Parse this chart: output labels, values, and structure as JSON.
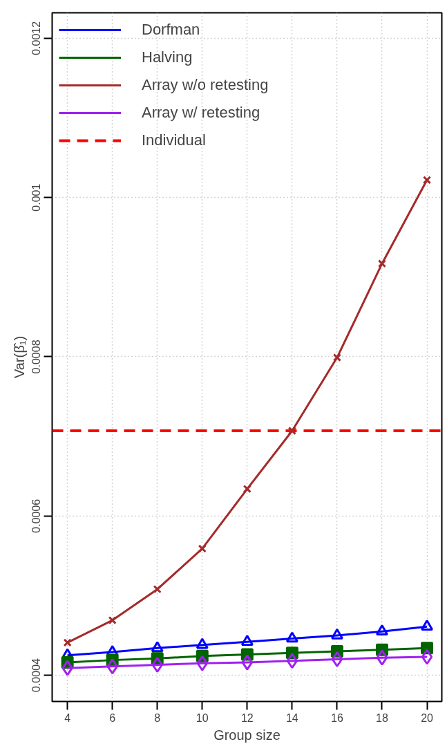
{
  "chart_data": {
    "type": "line",
    "xlabel": "Group size",
    "ylabel": "Var(β̂₁)",
    "x": [
      4,
      6,
      8,
      10,
      12,
      14,
      16,
      18,
      20
    ],
    "series": [
      {
        "name": "Dorfman",
        "color": "#0000ff",
        "marker": "triangle",
        "values": [
          0.000425,
          0.000429,
          0.000434,
          0.000438,
          0.000442,
          0.000446,
          0.00045,
          0.000455,
          0.000461
        ]
      },
      {
        "name": "Halving",
        "color": "#006400",
        "marker": "square",
        "values": [
          0.000416,
          0.000419,
          0.000421,
          0.000424,
          0.000426,
          0.000428,
          0.00043,
          0.000432,
          0.000434
        ]
      },
      {
        "name": "Array w/o retesting",
        "color": "#a52a2a",
        "marker": "cross",
        "values": [
          0.000441,
          0.000469,
          0.000508,
          0.000559,
          0.000634,
          0.000707,
          0.000799,
          0.000917,
          0.001022
        ]
      },
      {
        "name": "Array w/ retesting",
        "color": "#a020f0",
        "marker": "diamond",
        "values": [
          0.000409,
          0.000411,
          0.000413,
          0.000415,
          0.000416,
          0.000418,
          0.00042,
          0.000422,
          0.000423
        ]
      }
    ],
    "ref_lines": [
      {
        "axis": "y",
        "value": 0.000707,
        "label": "Individual",
        "color": "#ff0000",
        "line_style": "dashed"
      }
    ],
    "xlim": [
      3.32,
      20.66
    ],
    "ylim": [
      0.000367,
      0.001232
    ],
    "xticks": [
      4,
      6,
      8,
      10,
      12,
      14,
      16,
      18,
      20
    ],
    "yticks": [
      0.0004,
      0.0006,
      0.0008,
      0.001,
      0.0012
    ],
    "grid": true,
    "legend": "top left"
  }
}
